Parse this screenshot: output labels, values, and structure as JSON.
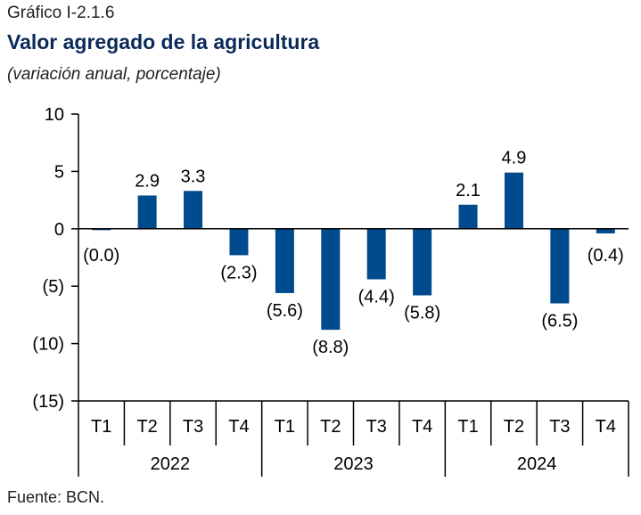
{
  "header": {
    "label": "Gráfico I-2.1.6",
    "title": "Valor agregado de la agricultura",
    "subtitle": "(variación anual, porcentaje)"
  },
  "footer": {
    "source": "Fuente: BCN."
  },
  "colors": {
    "bar": "#004b8d",
    "axis": "#000000"
  },
  "chart_data": {
    "type": "bar",
    "title": "Valor agregado de la agricultura",
    "subtitle": "(variación anual, porcentaje)",
    "categories": [
      "T1",
      "T2",
      "T3",
      "T4",
      "T1",
      "T2",
      "T3",
      "T4",
      "T1",
      "T2",
      "T3",
      "T4"
    ],
    "groups": [
      {
        "label": "2022",
        "count": 4
      },
      {
        "label": "2023",
        "count": 4
      },
      {
        "label": "2024",
        "count": 4
      }
    ],
    "values": [
      -0.04,
      2.9,
      3.3,
      -2.3,
      -5.6,
      -8.8,
      -4.4,
      -5.8,
      2.1,
      4.9,
      -6.5,
      -0.4
    ],
    "data_labels": [
      "(0.0)",
      "2.9",
      "3.3",
      "(2.3)",
      "(5.6)",
      "(8.8)",
      "(4.4)",
      "(5.8)",
      "2.1",
      "4.9",
      "(6.5)",
      "(0.4)"
    ],
    "ylim": [
      -15,
      10
    ],
    "yticks": [
      10,
      5,
      0,
      -5,
      -10,
      -15
    ],
    "ytick_labels": [
      "10",
      "5",
      "0",
      "(5)",
      "(10)",
      "(15)"
    ],
    "grid": false,
    "legend": "none"
  }
}
